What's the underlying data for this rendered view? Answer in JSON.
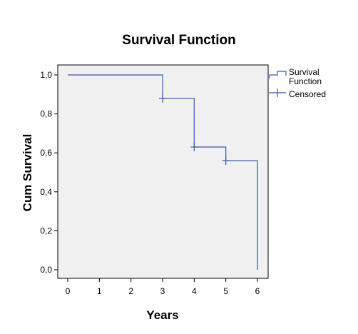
{
  "chart_data": {
    "type": "line",
    "title": "Survival Function",
    "xlabel": "Years",
    "ylabel": "Cum Survival",
    "xlim": [
      0,
      6
    ],
    "ylim": [
      0,
      1
    ],
    "x_ticks": [
      0,
      1,
      2,
      3,
      4,
      5,
      6
    ],
    "y_ticks": [
      "0,0",
      "0,2",
      "0,4",
      "0,6",
      "0,8",
      "1,0"
    ],
    "y_tick_values": [
      0.0,
      0.2,
      0.4,
      0.6,
      0.8,
      1.0
    ],
    "plot_background": "#f0f0f0",
    "grid": false,
    "legend_position": "right-top",
    "series": [
      {
        "name": "Survival Function",
        "kind": "step",
        "color": "#3b57a6",
        "points": [
          [
            0,
            1.0
          ],
          [
            3,
            1.0
          ],
          [
            3,
            0.88
          ],
          [
            4,
            0.88
          ],
          [
            4,
            0.63
          ],
          [
            5,
            0.63
          ],
          [
            5,
            0.56
          ],
          [
            6,
            0.56
          ],
          [
            6,
            0.0
          ]
        ]
      },
      {
        "name": "Censored",
        "kind": "marker",
        "color": "#3b57a6",
        "points": [
          [
            3,
            0.88
          ],
          [
            4,
            0.63
          ],
          [
            5,
            0.56
          ]
        ]
      }
    ],
    "legend": [
      "Survival Function",
      "Censored"
    ]
  }
}
